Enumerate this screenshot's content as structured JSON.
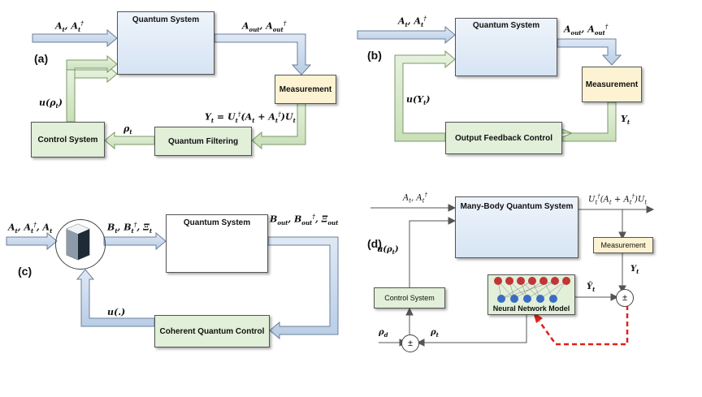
{
  "panels": {
    "a": {
      "label": "(a)",
      "quantum_system": "Quantum System",
      "measurement": "Measurement",
      "filtering": "Quantum Filtering",
      "control": "Control System",
      "in_signal": "A_t, A_t^†",
      "out_signal": "A_out, A_out^†",
      "meas_out": "Y_t = U_t^†(A_t + A_t^†)U_t",
      "rho": "ρ_t",
      "u": "u(ρ_t)"
    },
    "b": {
      "label": "(b)",
      "quantum_system": "Quantum System",
      "measurement": "Measurement",
      "feedback": "Output Feedback Control",
      "in_signal": "A_t, A_t^†",
      "out_signal": "A_out, A_out^†",
      "y": "Y_t",
      "u": "u(Y_t)"
    },
    "c": {
      "label": "(c)",
      "quantum_system": "Quantum System",
      "coherent": "Coherent Quantum Control",
      "in_signal": "A_t, A_t^†, A_t",
      "mid_signal": "B_t, B_t^†, Ξ_t",
      "out_signal": "B_out, B_out^†, Ξ_out",
      "u": "u(.)"
    },
    "d": {
      "label": "(d)",
      "many_body": "Many-Body Quantum System",
      "measurement": "Measurement",
      "control": "Control System",
      "nn": "Neural Network Model",
      "in_signal": "A_t, A_t^†",
      "out_signal": "U_t^†(A_t + A_t^†)U_t",
      "y": "Y_t",
      "y_hat": "Ŷ_t",
      "rho_d": "ρ_d",
      "rho_t": "ρ_t",
      "u": "u(ρ_t)",
      "pm": "±"
    }
  }
}
